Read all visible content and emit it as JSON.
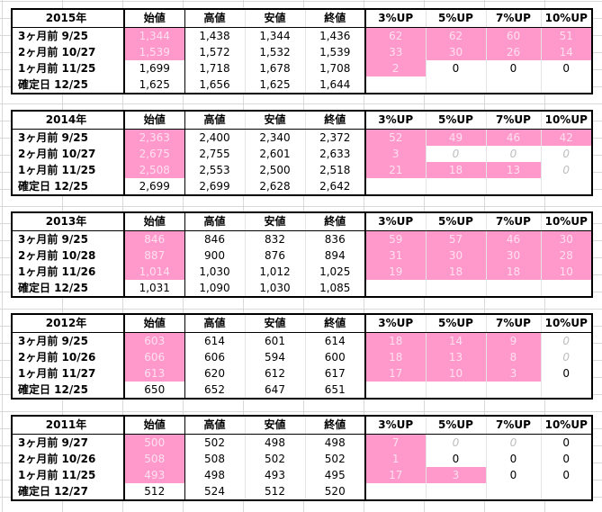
{
  "headers": [
    "始値",
    "高値",
    "安値",
    "終値",
    "3%UP",
    "5%UP",
    "7%UP",
    "10%UP"
  ],
  "colors": {
    "highlight": "#ff99cc",
    "highlight_text": "#ffe0ef"
  },
  "blocks": [
    {
      "year": "2015年",
      "rows": [
        {
          "label": "3ヶ月前  9/25",
          "vals": [
            "1,344",
            "1,438",
            "1,344",
            "1,436",
            "62",
            "62",
            "60",
            "51"
          ],
          "pink": [
            0,
            4,
            5,
            6,
            7
          ],
          "zero": []
        },
        {
          "label": "2ヶ月前  10/27",
          "vals": [
            "1,539",
            "1,572",
            "1,532",
            "1,539",
            "33",
            "30",
            "26",
            "14"
          ],
          "pink": [
            0,
            4,
            5,
            6,
            7
          ],
          "zero": []
        },
        {
          "label": "1ヶ月前  11/25",
          "vals": [
            "1,699",
            "1,718",
            "1,678",
            "1,708",
            "2",
            "0",
            "0",
            "0"
          ],
          "pink": [
            4
          ],
          "zero": []
        },
        {
          "label": "確定日   12/25",
          "vals": [
            "1,625",
            "1,656",
            "1,625",
            "1,644",
            "",
            "",
            "",
            ""
          ],
          "pink": [],
          "zero": []
        }
      ]
    },
    {
      "year": "2014年",
      "rows": [
        {
          "label": "3ヶ月前  9/25",
          "vals": [
            "2,363",
            "2,400",
            "2,340",
            "2,372",
            "52",
            "49",
            "46",
            "42"
          ],
          "pink": [
            0,
            4,
            5,
            6,
            7
          ],
          "zero": []
        },
        {
          "label": "2ヶ月前  10/27",
          "vals": [
            "2,675",
            "2,755",
            "2,601",
            "2,633",
            "3",
            "0",
            "0",
            "0"
          ],
          "pink": [
            0,
            4
          ],
          "zero": [
            5,
            6,
            7
          ]
        },
        {
          "label": "1ヶ月前  11/25",
          "vals": [
            "2,508",
            "2,553",
            "2,500",
            "2,518",
            "21",
            "18",
            "13",
            "0"
          ],
          "pink": [
            0,
            4,
            5,
            6
          ],
          "zero": [
            7
          ]
        },
        {
          "label": "確定日   12/25",
          "vals": [
            "2,699",
            "2,699",
            "2,628",
            "2,642",
            "",
            "",
            "",
            ""
          ],
          "pink": [],
          "zero": []
        }
      ]
    },
    {
      "year": "2013年",
      "rows": [
        {
          "label": "3ヶ月前  9/25",
          "vals": [
            "846",
            "846",
            "832",
            "836",
            "59",
            "57",
            "46",
            "30"
          ],
          "pink": [
            0,
            4,
            5,
            6,
            7
          ],
          "zero": []
        },
        {
          "label": "2ヶ月前  10/28",
          "vals": [
            "887",
            "900",
            "876",
            "894",
            "31",
            "30",
            "30",
            "28"
          ],
          "pink": [
            0,
            4,
            5,
            6,
            7
          ],
          "zero": []
        },
        {
          "label": "1ヶ月前  11/26",
          "vals": [
            "1,014",
            "1,030",
            "1,012",
            "1,025",
            "19",
            "18",
            "18",
            "10"
          ],
          "pink": [
            0,
            4,
            5,
            6,
            7
          ],
          "zero": []
        },
        {
          "label": "確定日   12/25",
          "vals": [
            "1,031",
            "1,090",
            "1,030",
            "1,085",
            "",
            "",
            "",
            ""
          ],
          "pink": [],
          "zero": []
        }
      ]
    },
    {
      "year": "2012年",
      "rows": [
        {
          "label": "3ヶ月前  9/25",
          "vals": [
            "603",
            "614",
            "601",
            "614",
            "18",
            "14",
            "9",
            "0"
          ],
          "pink": [
            0,
            4,
            5,
            6
          ],
          "zero": [
            7
          ]
        },
        {
          "label": "2ヶ月前  10/26",
          "vals": [
            "606",
            "606",
            "594",
            "600",
            "18",
            "13",
            "8",
            "0"
          ],
          "pink": [
            0,
            4,
            5,
            6
          ],
          "zero": [
            7
          ]
        },
        {
          "label": "1ヶ月前  11/27",
          "vals": [
            "613",
            "620",
            "612",
            "617",
            "17",
            "10",
            "3",
            "0"
          ],
          "pink": [
            0,
            4,
            5,
            6
          ],
          "zero": []
        },
        {
          "label": "確定日   12/25",
          "vals": [
            "650",
            "652",
            "647",
            "651",
            "",
            "",
            "",
            ""
          ],
          "pink": [],
          "zero": []
        }
      ]
    },
    {
      "year": "2011年",
      "rows": [
        {
          "label": "3ヶ月前  9/27",
          "vals": [
            "500",
            "502",
            "498",
            "498",
            "7",
            "0",
            "0",
            "0"
          ],
          "pink": [
            0,
            4
          ],
          "zero": [
            5,
            6
          ]
        },
        {
          "label": "2ヶ月前  10/26",
          "vals": [
            "508",
            "508",
            "502",
            "502",
            "1",
            "0",
            "0",
            "0"
          ],
          "pink": [
            0,
            4
          ],
          "zero": []
        },
        {
          "label": "1ヶ月前  11/25",
          "vals": [
            "493",
            "498",
            "493",
            "495",
            "17",
            "3",
            "0",
            "0"
          ],
          "pink": [
            0,
            4,
            5
          ],
          "zero": []
        },
        {
          "label": "確定日   12/27",
          "vals": [
            "512",
            "524",
            "512",
            "520",
            "",
            "",
            "",
            ""
          ],
          "pink": [],
          "zero": []
        }
      ]
    }
  ]
}
